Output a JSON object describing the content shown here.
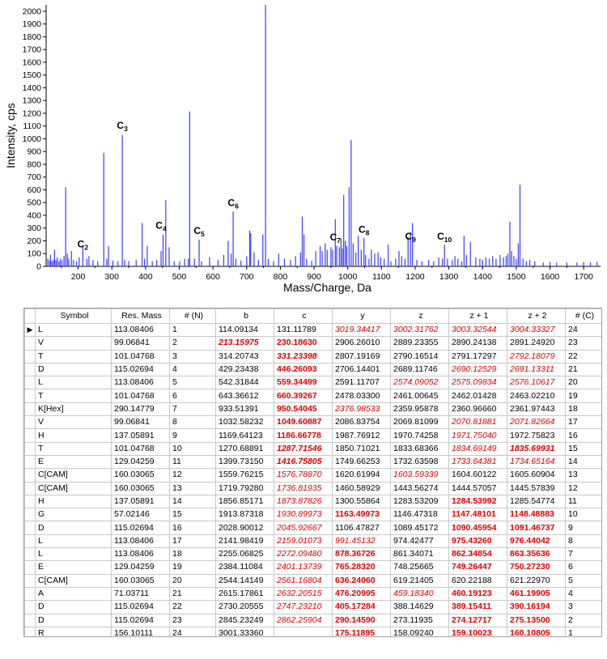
{
  "chart_data": {
    "type": "bar",
    "xlabel": "Mass/Charge, Da",
    "ylabel": "Intensity, cps",
    "xlim": [
      105,
      1750
    ],
    "ylim": [
      0,
      2050
    ],
    "xticks": [
      200,
      300,
      400,
      500,
      600,
      700,
      800,
      900,
      1000,
      1100,
      1200,
      1300,
      1400,
      1500,
      1600,
      1700
    ],
    "yticks": [
      0,
      100,
      200,
      300,
      400,
      500,
      600,
      700,
      800,
      900,
      1000,
      1100,
      1200,
      1300,
      1400,
      1500,
      1600,
      1700,
      1800,
      1900,
      2000
    ],
    "color": "#3b3bff",
    "peaks": [
      {
        "x": 110,
        "y": 60
      },
      {
        "x": 115,
        "y": 45
      },
      {
        "x": 118,
        "y": 90
      },
      {
        "x": 122,
        "y": 40
      },
      {
        "x": 126,
        "y": 50
      },
      {
        "x": 130,
        "y": 130
      },
      {
        "x": 134,
        "y": 50
      },
      {
        "x": 138,
        "y": 70
      },
      {
        "x": 143,
        "y": 40
      },
      {
        "x": 147,
        "y": 60
      },
      {
        "x": 152,
        "y": 50
      },
      {
        "x": 158,
        "y": 80
      },
      {
        "x": 163,
        "y": 620
      },
      {
        "x": 168,
        "y": 100
      },
      {
        "x": 172,
        "y": 60
      },
      {
        "x": 180,
        "y": 120
      },
      {
        "x": 186,
        "y": 50
      },
      {
        "x": 195,
        "y": 40
      },
      {
        "x": 203,
        "y": 70
      },
      {
        "x": 214,
        "y": 160
      },
      {
        "x": 226,
        "y": 60
      },
      {
        "x": 232,
        "y": 80
      },
      {
        "x": 244,
        "y": 50
      },
      {
        "x": 258,
        "y": 40
      },
      {
        "x": 276,
        "y": 890
      },
      {
        "x": 285,
        "y": 60
      },
      {
        "x": 290,
        "y": 160
      },
      {
        "x": 303,
        "y": 45
      },
      {
        "x": 318,
        "y": 40
      },
      {
        "x": 331,
        "y": 1030
      },
      {
        "x": 338,
        "y": 50
      },
      {
        "x": 350,
        "y": 40
      },
      {
        "x": 372,
        "y": 50
      },
      {
        "x": 390,
        "y": 340
      },
      {
        "x": 397,
        "y": 60
      },
      {
        "x": 405,
        "y": 160
      },
      {
        "x": 420,
        "y": 40
      },
      {
        "x": 433,
        "y": 50
      },
      {
        "x": 446,
        "y": 120
      },
      {
        "x": 452,
        "y": 250
      },
      {
        "x": 460,
        "y": 520
      },
      {
        "x": 470,
        "y": 150
      },
      {
        "x": 485,
        "y": 40
      },
      {
        "x": 501,
        "y": 40
      },
      {
        "x": 516,
        "y": 60
      },
      {
        "x": 527,
        "y": 60
      },
      {
        "x": 531,
        "y": 1215
      },
      {
        "x": 545,
        "y": 60
      },
      {
        "x": 559,
        "y": 210
      },
      {
        "x": 566,
        "y": 40
      },
      {
        "x": 590,
        "y": 70
      },
      {
        "x": 615,
        "y": 50
      },
      {
        "x": 632,
        "y": 90
      },
      {
        "x": 645,
        "y": 200
      },
      {
        "x": 654,
        "y": 100
      },
      {
        "x": 660,
        "y": 430
      },
      {
        "x": 668,
        "y": 60
      },
      {
        "x": 683,
        "y": 45
      },
      {
        "x": 700,
        "y": 80
      },
      {
        "x": 709,
        "y": 280
      },
      {
        "x": 712,
        "y": 260
      },
      {
        "x": 722,
        "y": 110
      },
      {
        "x": 735,
        "y": 50
      },
      {
        "x": 748,
        "y": 250
      },
      {
        "x": 756,
        "y": 2050
      },
      {
        "x": 764,
        "y": 60
      },
      {
        "x": 780,
        "y": 40
      },
      {
        "x": 795,
        "y": 100
      },
      {
        "x": 812,
        "y": 60
      },
      {
        "x": 830,
        "y": 50
      },
      {
        "x": 845,
        "y": 80
      },
      {
        "x": 860,
        "y": 110
      },
      {
        "x": 865,
        "y": 390
      },
      {
        "x": 870,
        "y": 250
      },
      {
        "x": 878,
        "y": 60
      },
      {
        "x": 893,
        "y": 45
      },
      {
        "x": 905,
        "y": 120
      },
      {
        "x": 918,
        "y": 160
      },
      {
        "x": 924,
        "y": 120
      },
      {
        "x": 933,
        "y": 180
      },
      {
        "x": 939,
        "y": 130
      },
      {
        "x": 950,
        "y": 150
      },
      {
        "x": 955,
        "y": 130
      },
      {
        "x": 963,
        "y": 370
      },
      {
        "x": 967,
        "y": 160
      },
      {
        "x": 975,
        "y": 150
      },
      {
        "x": 980,
        "y": 220
      },
      {
        "x": 984,
        "y": 140
      },
      {
        "x": 988,
        "y": 560
      },
      {
        "x": 993,
        "y": 200
      },
      {
        "x": 997,
        "y": 160
      },
      {
        "x": 1004,
        "y": 620
      },
      {
        "x": 1010,
        "y": 990
      },
      {
        "x": 1016,
        "y": 180
      },
      {
        "x": 1024,
        "y": 110
      },
      {
        "x": 1031,
        "y": 240
      },
      {
        "x": 1040,
        "y": 130
      },
      {
        "x": 1048,
        "y": 220
      },
      {
        "x": 1053,
        "y": 90
      },
      {
        "x": 1063,
        "y": 60
      },
      {
        "x": 1070,
        "y": 130
      },
      {
        "x": 1080,
        "y": 100
      },
      {
        "x": 1090,
        "y": 110
      },
      {
        "x": 1098,
        "y": 70
      },
      {
        "x": 1108,
        "y": 60
      },
      {
        "x": 1120,
        "y": 170
      },
      {
        "x": 1128,
        "y": 40
      },
      {
        "x": 1142,
        "y": 60
      },
      {
        "x": 1152,
        "y": 120
      },
      {
        "x": 1160,
        "y": 80
      },
      {
        "x": 1170,
        "y": 60
      },
      {
        "x": 1179,
        "y": 230
      },
      {
        "x": 1186,
        "y": 270
      },
      {
        "x": 1192,
        "y": 340
      },
      {
        "x": 1205,
        "y": 50
      },
      {
        "x": 1220,
        "y": 40
      },
      {
        "x": 1240,
        "y": 50
      },
      {
        "x": 1255,
        "y": 40
      },
      {
        "x": 1270,
        "y": 70
      },
      {
        "x": 1281,
        "y": 60
      },
      {
        "x": 1287,
        "y": 170
      },
      {
        "x": 1296,
        "y": 60
      },
      {
        "x": 1310,
        "y": 50
      },
      {
        "x": 1318,
        "y": 80
      },
      {
        "x": 1327,
        "y": 60
      },
      {
        "x": 1338,
        "y": 40
      },
      {
        "x": 1345,
        "y": 240
      },
      {
        "x": 1352,
        "y": 90
      },
      {
        "x": 1364,
        "y": 190
      },
      {
        "x": 1380,
        "y": 70
      },
      {
        "x": 1392,
        "y": 60
      },
      {
        "x": 1400,
        "y": 50
      },
      {
        "x": 1410,
        "y": 70
      },
      {
        "x": 1420,
        "y": 60
      },
      {
        "x": 1430,
        "y": 80
      },
      {
        "x": 1440,
        "y": 60
      },
      {
        "x": 1452,
        "y": 90
      },
      {
        "x": 1462,
        "y": 70
      },
      {
        "x": 1470,
        "y": 80
      },
      {
        "x": 1475,
        "y": 100
      },
      {
        "x": 1481,
        "y": 350
      },
      {
        "x": 1486,
        "y": 120
      },
      {
        "x": 1493,
        "y": 80
      },
      {
        "x": 1500,
        "y": 60
      },
      {
        "x": 1506,
        "y": 180
      },
      {
        "x": 1511,
        "y": 640
      },
      {
        "x": 1520,
        "y": 60
      },
      {
        "x": 1530,
        "y": 40
      },
      {
        "x": 1540,
        "y": 50
      },
      {
        "x": 1555,
        "y": 40
      },
      {
        "x": 1580,
        "y": 30
      },
      {
        "x": 1600,
        "y": 35
      },
      {
        "x": 1620,
        "y": 30
      },
      {
        "x": 1650,
        "y": 30
      },
      {
        "x": 1680,
        "y": 30
      },
      {
        "x": 1700,
        "y": 35
      },
      {
        "x": 1720,
        "y": 30
      },
      {
        "x": 1740,
        "y": 35
      }
    ],
    "annotations": [
      {
        "label": "C",
        "sub": "2",
        "x": 214,
        "y": 130
      },
      {
        "label": "C",
        "sub": "3",
        "x": 331,
        "y": 1060
      },
      {
        "label": "C",
        "sub": "4",
        "x": 446,
        "y": 275
      },
      {
        "label": "C",
        "sub": "5",
        "x": 559,
        "y": 235
      },
      {
        "label": "C",
        "sub": "6",
        "x": 660,
        "y": 455
      },
      {
        "label": "C",
        "sub": "7",
        "x": 963,
        "y": 185
      },
      {
        "label": "C",
        "sub": "8",
        "x": 1048,
        "y": 245
      },
      {
        "label": "C",
        "sub": "9",
        "x": 1186,
        "y": 190
      },
      {
        "label": "C",
        "sub": "10",
        "x": 1287,
        "y": 190
      }
    ]
  },
  "table": {
    "columns": [
      "",
      "Symbol",
      "Res. Mass",
      "# (N)",
      "b",
      "c",
      "y",
      "z",
      "z + 1",
      "z + 2",
      "# (C)"
    ],
    "row_marker": "▶",
    "rows": [
      [
        "L",
        "113.08406",
        "1",
        "114.09134",
        "131.11789",
        "3019.34417",
        "3002.31762",
        "3003.32544",
        "3004.33327",
        "24"
      ],
      [
        "V",
        "99.06841",
        "2",
        "213.15975",
        "230.18630",
        "2906.26010",
        "2889.23355",
        "2890.24138",
        "2891.24920",
        "23"
      ],
      [
        "T",
        "101.04768",
        "3",
        "314.20743",
        "331.23398",
        "2807.19169",
        "2790.16514",
        "2791.17297",
        "2792.18079",
        "22"
      ],
      [
        "D",
        "115.02694",
        "4",
        "429.23438",
        "446.26093",
        "2706.14401",
        "2689.11746",
        "2690.12529",
        "2691.13311",
        "21"
      ],
      [
        "L",
        "113.08406",
        "5",
        "542.31844",
        "559.34499",
        "2591.11707",
        "2574.09052",
        "2575.09834",
        "2576.10617",
        "20"
      ],
      [
        "T",
        "101.04768",
        "6",
        "643.36612",
        "660.39267",
        "2478.03300",
        "2461.00645",
        "2462.01428",
        "2463.02210",
        "19"
      ],
      [
        "K[Hex]",
        "290.14779",
        "7",
        "933.51391",
        "950.54045",
        "2376.98533",
        "2359.95878",
        "2360.96660",
        "2361.97443",
        "18"
      ],
      [
        "V",
        "99.06841",
        "8",
        "1032.58232",
        "1049.60887",
        "2086.83754",
        "2069.81099",
        "2070.81881",
        "2071.82664",
        "17"
      ],
      [
        "H",
        "137.05891",
        "9",
        "1169.64123",
        "1186.66778",
        "1987.76912",
        "1970.74258",
        "1971.75040",
        "1972.75823",
        "16"
      ],
      [
        "T",
        "101.04768",
        "10",
        "1270.68891",
        "1287.71546",
        "1850.71021",
        "1833.68366",
        "1834.69149",
        "1835.69931",
        "15"
      ],
      [
        "E",
        "129.04259",
        "11",
        "1399.73150",
        "1416.75805",
        "1749.66253",
        "1732.63598",
        "1733.64381",
        "1734.65164",
        "14"
      ],
      [
        "C[CAM]",
        "160.03065",
        "12",
        "1559.76215",
        "1576.78870",
        "1620.61994",
        "1603.59339",
        "1604.60122",
        "1605.60904",
        "13"
      ],
      [
        "C[CAM]",
        "160.03065",
        "13",
        "1719.79280",
        "1736.81935",
        "1460.58929",
        "1443.56274",
        "1444.57057",
        "1445.57839",
        "12"
      ],
      [
        "H",
        "137.05891",
        "14",
        "1856.85171",
        "1873.87826",
        "1300.55864",
        "1283.53209",
        "1284.53992",
        "1285.54774",
        "11"
      ],
      [
        "G",
        "57.02146",
        "15",
        "1913.87318",
        "1930.89973",
        "1163.49973",
        "1146.47318",
        "1147.48101",
        "1148.48883",
        "10"
      ],
      [
        "D",
        "115.02694",
        "16",
        "2028.90012",
        "2045.92667",
        "1106.47827",
        "1089.45172",
        "1090.45954",
        "1091.46737",
        "9"
      ],
      [
        "L",
        "113.08406",
        "17",
        "2141.98419",
        "2159.01073",
        "991.45132",
        "974.42477",
        "975.43260",
        "976.44042",
        "8"
      ],
      [
        "L",
        "113.08406",
        "18",
        "2255.06825",
        "2272.09480",
        "878.36726",
        "861.34071",
        "862.34854",
        "863.35636",
        "7"
      ],
      [
        "E",
        "129.04259",
        "19",
        "2384.11084",
        "2401.13739",
        "765.28320",
        "748.25665",
        "749.26447",
        "750.27230",
        "6"
      ],
      [
        "C[CAM]",
        "160.03065",
        "20",
        "2544.14149",
        "2561.16804",
        "636.24060",
        "619.21405",
        "620.22188",
        "621.22970",
        "5"
      ],
      [
        "A",
        "71.03711",
        "21",
        "2615.17861",
        "2632.20515",
        "476.20995",
        "459.18340",
        "460.19123",
        "461.19905",
        "4"
      ],
      [
        "D",
        "115.02694",
        "22",
        "2730.20555",
        "2747.23210",
        "405.17284",
        "388.14629",
        "389.15411",
        "390.16194",
        "3"
      ],
      [
        "D",
        "115.02694",
        "23",
        "2845.23249",
        "2862.25904",
        "290.14590",
        "273.11935",
        "274.12717",
        "275.13500",
        "2"
      ],
      [
        "R",
        "156.10111",
        "24",
        "3001.33360",
        "",
        "175.11895",
        "158.09240",
        "159.10023",
        "160.10805",
        "1"
      ]
    ],
    "styles": [
      [
        "",
        "",
        "",
        "",
        "",
        "ri",
        "ri",
        "ri",
        "ri",
        ""
      ],
      [
        "",
        "",
        "",
        "rbi",
        "rb",
        "",
        "",
        "",
        "",
        ""
      ],
      [
        "",
        "",
        "",
        "",
        "rbi",
        "",
        "",
        "",
        "ri",
        ""
      ],
      [
        "",
        "",
        "",
        "",
        "rb",
        "",
        "",
        "ri",
        "ri",
        ""
      ],
      [
        "",
        "",
        "",
        "",
        "rb",
        "",
        "ri",
        "ri",
        "ri",
        ""
      ],
      [
        "",
        "",
        "",
        "",
        "rb",
        "",
        "",
        "",
        "",
        ""
      ],
      [
        "",
        "",
        "",
        "",
        "rb",
        "ri",
        "",
        "",
        "",
        ""
      ],
      [
        "",
        "",
        "",
        "",
        "rb",
        "",
        "",
        "ri",
        "ri",
        ""
      ],
      [
        "",
        "",
        "",
        "",
        "rb",
        "",
        "",
        "ri",
        "",
        ""
      ],
      [
        "",
        "",
        "",
        "",
        "rbi",
        "",
        "",
        "ri",
        "rbi",
        ""
      ],
      [
        "",
        "",
        "",
        "",
        "rbi",
        "",
        "",
        "ri",
        "ri",
        ""
      ],
      [
        "",
        "",
        "",
        "",
        "ri",
        "",
        "ri",
        "",
        "",
        ""
      ],
      [
        "",
        "",
        "",
        "",
        "ri",
        "",
        "",
        "",
        "",
        ""
      ],
      [
        "",
        "",
        "",
        "",
        "ri",
        "",
        "",
        "rb",
        "",
        ""
      ],
      [
        "",
        "",
        "",
        "",
        "ri",
        "rb",
        "",
        "rb",
        "rb",
        ""
      ],
      [
        "",
        "",
        "",
        "",
        "ri",
        "",
        "",
        "rb",
        "rb",
        ""
      ],
      [
        "",
        "",
        "",
        "",
        "ri",
        "ri",
        "",
        "rb",
        "rb",
        ""
      ],
      [
        "",
        "",
        "",
        "",
        "ri",
        "rb",
        "",
        "rb",
        "rb",
        ""
      ],
      [
        "",
        "",
        "",
        "",
        "ri",
        "rb",
        "",
        "rb",
        "rb",
        ""
      ],
      [
        "",
        "",
        "",
        "",
        "ri",
        "rb",
        "",
        "",
        "",
        ""
      ],
      [
        "",
        "",
        "",
        "",
        "ri",
        "rb",
        "ri",
        "rb",
        "rb",
        ""
      ],
      [
        "",
        "",
        "",
        "",
        "ri",
        "rb",
        "",
        "rb",
        "rb",
        ""
      ],
      [
        "",
        "",
        "",
        "",
        "ri",
        "rb",
        "",
        "rb",
        "rb",
        ""
      ],
      [
        "",
        "",
        "",
        "",
        "",
        "rb",
        "",
        "rb",
        "rb",
        ""
      ]
    ]
  }
}
